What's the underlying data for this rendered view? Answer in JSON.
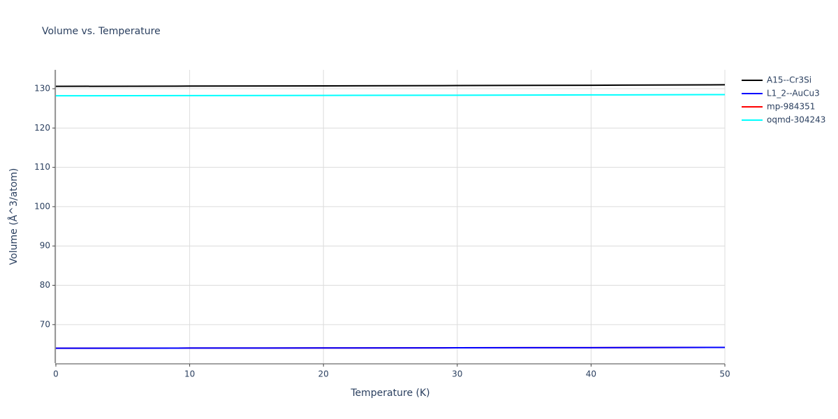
{
  "chart_data": {
    "type": "line",
    "title": "Volume vs. Temperature",
    "xlabel": "Temperature (K)",
    "ylabel": "Volume (Å^3/atom)",
    "x": [
      0,
      10,
      20,
      30,
      40,
      50
    ],
    "series": [
      {
        "name": "A15--Cr3Si",
        "color": "#000000",
        "values": [
          130.6,
          130.66,
          130.72,
          130.8,
          130.88,
          131.0
        ]
      },
      {
        "name": "L1_2--AuCu3",
        "color": "#0000ff",
        "values": [
          64.0,
          64.03,
          64.06,
          64.1,
          64.14,
          64.2
        ]
      },
      {
        "name": "mp-984351",
        "color": "#ff0000",
        "values": [
          64.0,
          64.03,
          64.06,
          64.1,
          64.14,
          64.2
        ]
      },
      {
        "name": "oqmd-304243",
        "color": "#00ffff",
        "values": [
          128.2,
          128.25,
          128.3,
          128.35,
          128.42,
          128.5
        ]
      }
    ],
    "xlim": [
      0,
      50
    ],
    "xticks": [
      0,
      10,
      20,
      30,
      40,
      50
    ],
    "ylim": [
      60.2,
      134.8
    ],
    "yticks": [
      70,
      80,
      90,
      100,
      110,
      120,
      130
    ],
    "grid": true,
    "legend": "right"
  }
}
